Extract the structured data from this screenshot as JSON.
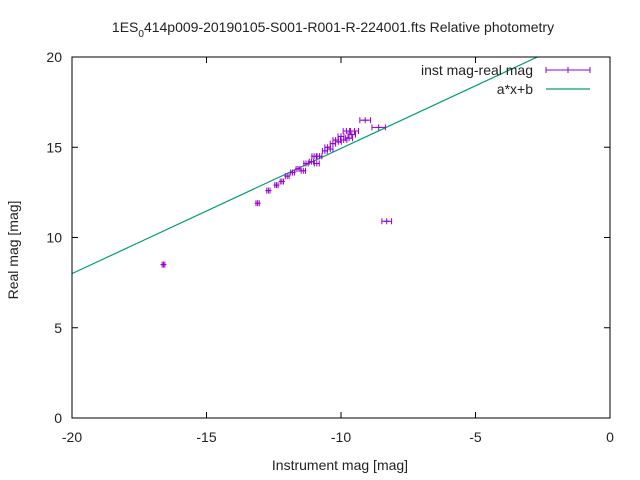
{
  "chart_data": {
    "type": "scatter",
    "title_main": "1ES",
    "title_sub": "0",
    "title_rest": "414p009-20190105-S001-R001-R-224001.fts Relative photometry",
    "xlabel": "Instrument mag [mag]",
    "ylabel": "Real mag [mag]",
    "xlim": [
      -20,
      0
    ],
    "ylim": [
      0,
      20
    ],
    "xticks": [
      -20,
      -15,
      -10,
      -5,
      0
    ],
    "xtick_labels": [
      "-20",
      "-15",
      "-10",
      "-5",
      "0"
    ],
    "yticks": [
      0,
      5,
      10,
      15,
      20
    ],
    "ytick_labels": [
      "0",
      "5",
      "10",
      "15",
      "20"
    ],
    "grid": false,
    "legend_position": "top-right",
    "colors": {
      "points": "#9400d3",
      "fit": "#009e73",
      "axis": "#000000"
    },
    "series": [
      {
        "name": "inst mag-real mag",
        "kind": "points-with-xerror",
        "points": [
          {
            "x": -16.6,
            "y": 8.5,
            "xerr": 0.05
          },
          {
            "x": -13.1,
            "y": 11.9,
            "xerr": 0.06
          },
          {
            "x": -12.7,
            "y": 12.6,
            "xerr": 0.06
          },
          {
            "x": -12.4,
            "y": 12.9,
            "xerr": 0.06
          },
          {
            "x": -12.2,
            "y": 13.1,
            "xerr": 0.06
          },
          {
            "x": -12.0,
            "y": 13.4,
            "xerr": 0.07
          },
          {
            "x": -11.8,
            "y": 13.6,
            "xerr": 0.07
          },
          {
            "x": -11.6,
            "y": 13.8,
            "xerr": 0.07
          },
          {
            "x": -11.4,
            "y": 13.7,
            "xerr": 0.08
          },
          {
            "x": -11.3,
            "y": 14.1,
            "xerr": 0.08
          },
          {
            "x": -11.1,
            "y": 14.2,
            "xerr": 0.08
          },
          {
            "x": -11.0,
            "y": 14.5,
            "xerr": 0.08
          },
          {
            "x": -10.8,
            "y": 14.5,
            "xerr": 0.09
          },
          {
            "x": -10.9,
            "y": 14.1,
            "xerr": 0.09
          },
          {
            "x": -10.6,
            "y": 14.8,
            "xerr": 0.09
          },
          {
            "x": -10.5,
            "y": 15.0,
            "xerr": 0.1
          },
          {
            "x": -10.3,
            "y": 15.2,
            "xerr": 0.1
          },
          {
            "x": -10.2,
            "y": 15.4,
            "xerr": 0.1
          },
          {
            "x": -10.1,
            "y": 15.3,
            "xerr": 0.11
          },
          {
            "x": -10.0,
            "y": 15.6,
            "xerr": 0.11
          },
          {
            "x": -9.9,
            "y": 15.4,
            "xerr": 0.12
          },
          {
            "x": -9.8,
            "y": 15.9,
            "xerr": 0.12
          },
          {
            "x": -9.7,
            "y": 15.5,
            "xerr": 0.13
          },
          {
            "x": -9.6,
            "y": 15.7,
            "xerr": 0.14
          },
          {
            "x": -9.5,
            "y": 15.9,
            "xerr": 0.15
          },
          {
            "x": -10.4,
            "y": 14.9,
            "xerr": 0.1
          },
          {
            "x": -9.1,
            "y": 16.5,
            "xerr": 0.2
          },
          {
            "x": -8.6,
            "y": 16.1,
            "xerr": 0.25
          },
          {
            "x": -8.3,
            "y": 10.9,
            "xerr": 0.18
          }
        ]
      },
      {
        "name": "a*x+b",
        "kind": "line",
        "x": [
          -20,
          -2.7
        ],
        "y": [
          8.0,
          20.0
        ]
      }
    ]
  }
}
